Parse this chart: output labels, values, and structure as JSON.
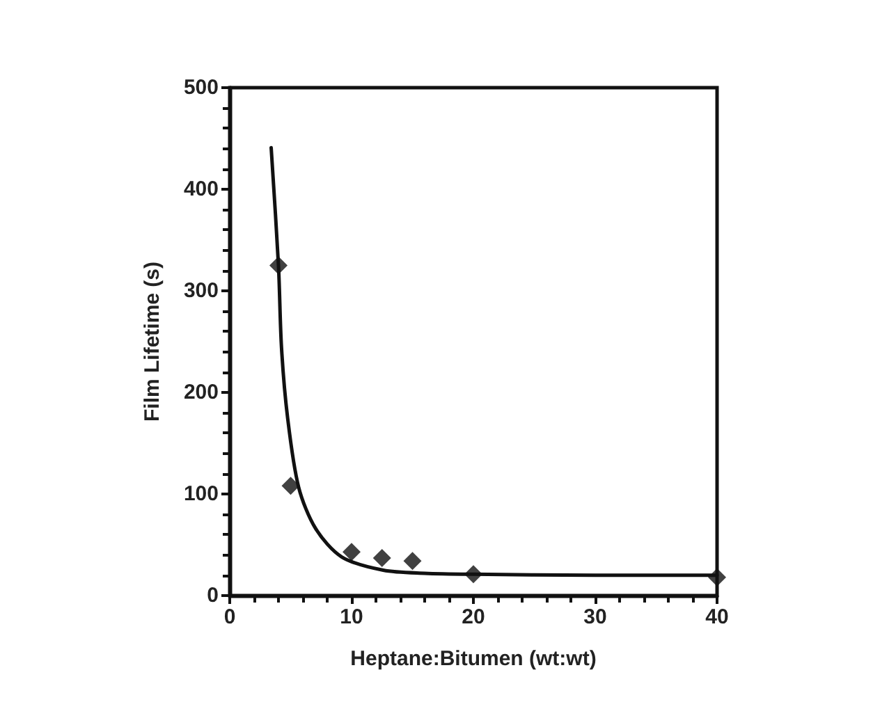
{
  "chart_data": {
    "type": "scatter",
    "xlabel": "Heptane:Bitumen (wt:wt)",
    "ylabel": "Film Lifetime (s)",
    "xlim": [
      0,
      40
    ],
    "xticks": [
      0,
      10,
      20,
      30,
      40
    ],
    "ylim": [
      0,
      500
    ],
    "yticks": [
      0,
      100,
      200,
      300,
      400,
      500
    ],
    "grid": false,
    "marker": "diamond",
    "series": [
      {
        "color": "#111111",
        "x": [
          4,
          5,
          10,
          12.5,
          15,
          20,
          40
        ],
        "values": [
          325,
          108,
          43,
          37,
          34,
          21,
          18
        ]
      },
      {
        "type": "line",
        "color": "#111111",
        "line_style": "solid",
        "marker": "none",
        "x": [
          3.4,
          4,
          4.25,
          4.75,
          5.65,
          7.05,
          9.2,
          12.6,
          16,
          20,
          30,
          40
        ],
        "values": [
          441,
          325,
          244,
          175,
          107,
          66,
          38,
          25,
          22,
          21,
          20,
          20
        ]
      }
    ]
  }
}
